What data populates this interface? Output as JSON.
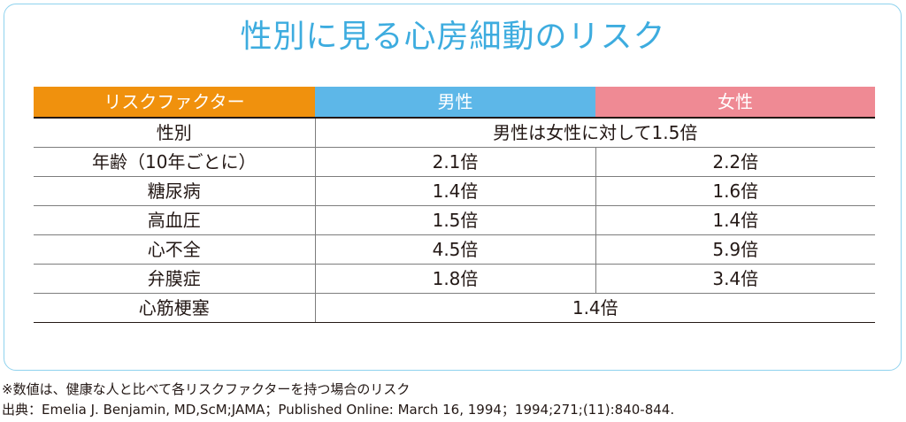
{
  "title": "性別に見る心房細動のリスク",
  "colors": {
    "title": "#3dacdf",
    "risk_factor_header": "#f0910d",
    "male_header": "#5db7e8",
    "female_header": "#ef8a94",
    "border": "#8fd2ee"
  },
  "table": {
    "headers": [
      "リスクファクター",
      "男性",
      "女性"
    ],
    "rows": [
      {
        "factor": "性別",
        "combined": "男性は女性に対して1.5倍"
      },
      {
        "factor": "年齢（10年ごとに）",
        "male": "2.1倍",
        "female": "2.2倍"
      },
      {
        "factor": "糖尿病",
        "male": "1.4倍",
        "female": "1.6倍"
      },
      {
        "factor": "高血圧",
        "male": "1.5倍",
        "female": "1.4倍"
      },
      {
        "factor": "心不全",
        "male": "4.5倍",
        "female": "5.9倍"
      },
      {
        "factor": "弁膜症",
        "male": "1.8倍",
        "female": "3.4倍"
      },
      {
        "factor": "心筋梗塞",
        "combined": "1.4倍"
      }
    ]
  },
  "footnote": "※数値は、健康な人と比べて各リスクファクターを持つ場合のリスク",
  "source": "出典：Emelia J. Benjamin, MD,ScM;JAMA；Published Online: March 16, 1994；1994;271;(11):840-844."
}
